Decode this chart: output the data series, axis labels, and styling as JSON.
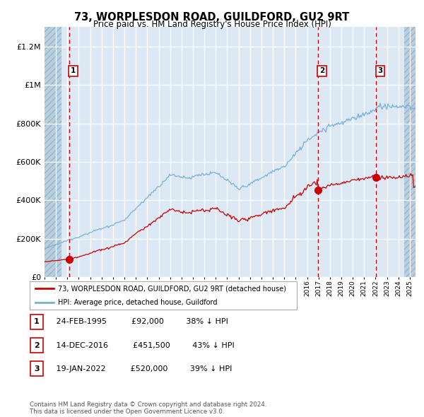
{
  "title": "73, WORPLESDON ROAD, GUILDFORD, GU2 9RT",
  "subtitle": "Price paid vs. HM Land Registry's House Price Index (HPI)",
  "bg_color": "#dce9f5",
  "hatch_color": "#b8cfe0",
  "red_line_color": "#cc0000",
  "blue_line_color": "#7ab0d4",
  "sale_marker_color": "#cc0000",
  "vline_color": "#cc0000",
  "legend_label_red": "73, WORPLESDON ROAD, GUILDFORD, GU2 9RT (detached house)",
  "legend_label_blue": "HPI: Average price, detached house, Guildford",
  "sales": [
    {
      "num": 1,
      "date_num": 1995.15,
      "price": 92000,
      "label": "24-FEB-1995",
      "pct": "38% ↓ HPI"
    },
    {
      "num": 2,
      "date_num": 2016.95,
      "price": 451500,
      "label": "14-DEC-2016",
      "pct": "43% ↓ HPI"
    },
    {
      "num": 3,
      "date_num": 2022.05,
      "price": 520000,
      "label": "19-JAN-2022",
      "pct": "39% ↓ HPI"
    }
  ],
  "ylim": [
    0,
    1300000
  ],
  "xlim_start": 1993.0,
  "xlim_end": 2025.5,
  "yticks": [
    0,
    200000,
    400000,
    600000,
    800000,
    1000000,
    1200000
  ],
  "ytick_labels": [
    "£0",
    "£200K",
    "£400K",
    "£600K",
    "£800K",
    "£1M",
    "£1.2M"
  ],
  "footer": "Contains HM Land Registry data © Crown copyright and database right 2024.\nThis data is licensed under the Open Government Licence v3.0.",
  "table_rows": [
    {
      "num": 1,
      "date": "24-FEB-1995",
      "price": "£92,000",
      "pct": "38% ↓ HPI"
    },
    {
      "num": 2,
      "date": "14-DEC-2016",
      "price": "£451,500",
      "pct": "43% ↓ HPI"
    },
    {
      "num": 3,
      "date": "19-JAN-2022",
      "price": "£520,000",
      "pct": "39% ↓ HPI"
    }
  ]
}
